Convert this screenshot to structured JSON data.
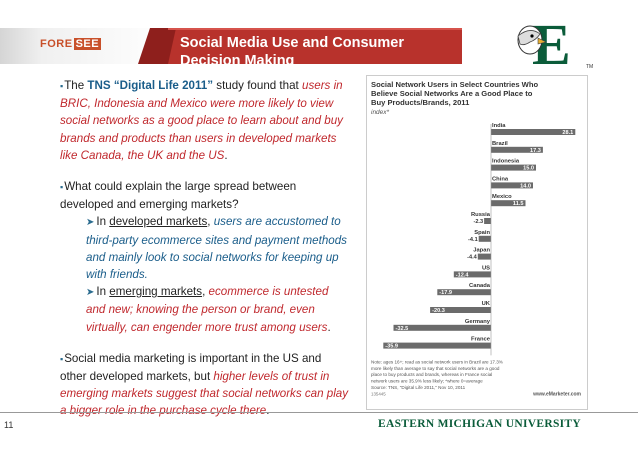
{
  "header": {
    "logo_fore": "FORE",
    "logo_see": "SEE",
    "title_line1": "Social Media Use and Consumer",
    "title_line2": "Decision Making",
    "colors": {
      "banner_red": "#b8322c",
      "banner_dark": "#8e1f1c",
      "emu_green": "#0b5c3a"
    }
  },
  "body": {
    "p1": {
      "pre": "The ",
      "study": "TNS “Digital Life 2011”",
      "mid": " study found that ",
      "red": "users in BRIC, Indonesia and Mexico were more likely to view social networks as a good place to learn about and buy brands and products than users in developed markets like Canada, the UK and the US",
      "end": "."
    },
    "p2": {
      "text": "What could explain the large spread between developed and emerging markets?",
      "sub1_pre": "In ",
      "sub1_u": "developed markets",
      "sub1_comma": ",",
      "sub1_body": " users are accustomed to third-party ecommerce sites and payment methods and mainly look to social networks for keeping up with friends.",
      "sub2_pre": "In ",
      "sub2_u": "emerging markets",
      "sub2_comma": ",",
      "sub2_body": " ecommerce is untested and new; knowing the person or brand, even virtually, can engender more trust among users",
      "sub2_end": "."
    },
    "p3": {
      "pre": "Social media marketing is important in the US and other developed markets, but ",
      "red": "higher levels of trust in emerging markets suggest that social networks can play a bigger role in the purchase cycle there",
      "end": "."
    }
  },
  "chart_data": {
    "type": "bar",
    "title": "Social Network Users in Select Countries Who Believe Social Networks Are a Good Place to Buy Products/Brands, 2011",
    "subtitle": "index*",
    "categories": [
      "India",
      "Brazil",
      "Indonesia",
      "China",
      "Mexico",
      "Russia",
      "Spain",
      "Japan",
      "US",
      "Canada",
      "UK",
      "Germany",
      "France"
    ],
    "values": [
      28.1,
      17.3,
      15.0,
      14.0,
      11.5,
      -2.3,
      -4.1,
      -4.4,
      -12.4,
      -17.9,
      -20.3,
      -32.5,
      -35.9
    ],
    "value_labels": [
      "28.1",
      "17.3",
      "15.0",
      "14.0",
      "11.5",
      "-2.3",
      "-4.1",
      "-4.4",
      "-12.4",
      "-17.9",
      "-20.3",
      "-32.5",
      "-35.9"
    ],
    "note": "Note: ages 16+; read as social network users in Brazil are 17.3% more likely than average to say that social networks are a good place to buy products and brands, whereas in France social network users are 35.9% less likely; *where 0=average",
    "source": "Source: TNS, \"Digital Life 2011,\" Nov 10, 2011",
    "id": "135445",
    "site": "www.eMarketer.com",
    "xlim": [
      -40,
      30
    ]
  },
  "footer": {
    "page_number": "11",
    "university": "EASTERN MICHIGAN UNIVERSITY"
  }
}
